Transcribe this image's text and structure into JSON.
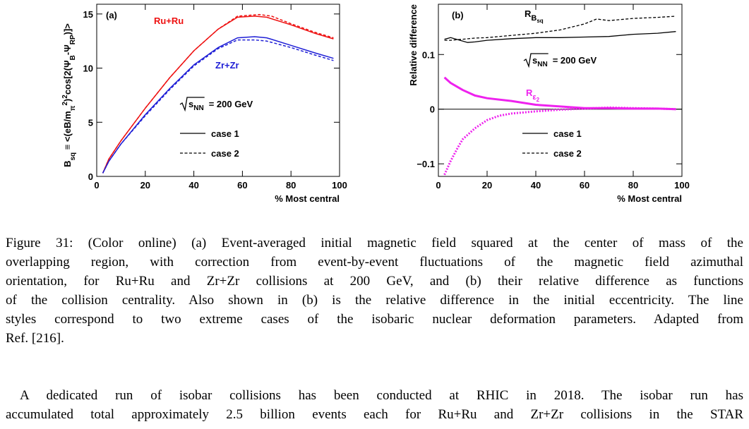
{
  "chart_data": [
    {
      "type": "line",
      "panel": "(a)",
      "xlabel": "% Most central",
      "ylabel": {
        "parts": [
          {
            "t": "B"
          },
          {
            "t": "sq",
            "s": "sub"
          },
          {
            "t": " ≡ <(eB/m"
          },
          {
            "t": "π",
            "s": "sub"
          },
          {
            "t": "2",
            "s": "super"
          },
          {
            "t": ")"
          },
          {
            "t": "2",
            "s": "super"
          },
          {
            "t": "cos[2(Ψ"
          },
          {
            "t": "B",
            "s": "sub"
          },
          {
            "t": "-Ψ"
          },
          {
            "t": "RP",
            "s": "sub"
          },
          {
            "t": ")]>"
          }
        ]
      },
      "xlim": [
        0,
        100
      ],
      "xticks": [
        0,
        20,
        40,
        60,
        80,
        100
      ],
      "ylim": [
        0,
        15.9
      ],
      "yticks": [
        0,
        5,
        10,
        15
      ],
      "energy": {
        "root": "s",
        "sub": "NN",
        "text": "= 200 GeV"
      },
      "legend": [
        {
          "name": "case 1",
          "dash": "solid"
        },
        {
          "name": "case 2",
          "dash": "dashed"
        }
      ],
      "series": [
        {
          "name": "Ru+Ru",
          "color": "#ee1111",
          "linewidth": 1.5,
          "lines": [
            {
              "dash": "solid",
              "x": [
                2.5,
                5,
                10,
                20,
                30,
                40,
                50,
                58,
                65,
                70,
                80,
                90,
                97.5
              ],
              "values": [
                0.3,
                1.6,
                3.3,
                6.3,
                9.1,
                11.6,
                13.6,
                14.7,
                14.8,
                14.7,
                14.0,
                13.2,
                12.7
              ]
            },
            {
              "dash": "dashed",
              "x": [
                2.5,
                5,
                10,
                20,
                30,
                40,
                50,
                58,
                67,
                72,
                80,
                90,
                97.5
              ],
              "values": [
                0.3,
                1.6,
                3.3,
                6.3,
                9.1,
                11.6,
                13.6,
                14.8,
                14.95,
                14.8,
                14.1,
                13.3,
                12.8
              ]
            }
          ]
        },
        {
          "name": "Zr+Zr",
          "color": "#1f1fd6",
          "linewidth": 1.5,
          "lines": [
            {
              "dash": "solid",
              "x": [
                2.5,
                5,
                10,
                20,
                30,
                40,
                50,
                58,
                65,
                70,
                80,
                90,
                97.5
              ],
              "values": [
                0.3,
                1.4,
                3.0,
                5.7,
                8.1,
                10.3,
                11.9,
                12.8,
                12.9,
                12.8,
                12.1,
                11.4,
                10.9
              ]
            },
            {
              "dash": "dashed",
              "x": [
                2.5,
                5,
                10,
                20,
                30,
                40,
                50,
                58,
                65,
                70,
                80,
                90,
                97.5
              ],
              "values": [
                0.3,
                1.4,
                3.0,
                5.6,
                8.0,
                10.2,
                11.8,
                12.6,
                12.6,
                12.5,
                11.9,
                11.2,
                10.7
              ]
            }
          ]
        }
      ]
    },
    {
      "type": "line",
      "panel": "(b)",
      "xlabel": "% Most central",
      "ylabel": {
        "parts": [
          {
            "t": "Relative difference"
          }
        ]
      },
      "xlim": [
        0,
        100
      ],
      "xticks": [
        0,
        20,
        40,
        60,
        80,
        100
      ],
      "ylim": [
        -0.123,
        0.192
      ],
      "yticks": [
        {
          "value": -0.1,
          "label": "−0.1"
        },
        0,
        0.1
      ],
      "hline": 0,
      "energy": {
        "root": "s",
        "sub": "NN",
        "text": "= 200 GeV"
      },
      "legend": [
        {
          "name": "case 1",
          "dash": "solid"
        },
        {
          "name": "case 2",
          "dash": "dashed"
        }
      ],
      "series": [
        {
          "name": "R",
          "sub": "B",
          "subsub": "sq",
          "color": "#000000",
          "linewidth": 1.3,
          "lines": [
            {
              "dash": "solid",
              "x": [
                2.5,
                5,
                8,
                12,
                15,
                20,
                30,
                40,
                50,
                60,
                70,
                80,
                90,
                97.5
              ],
              "values": [
                0.128,
                0.131,
                0.127,
                0.122,
                0.123,
                0.126,
                0.129,
                0.131,
                0.131,
                0.132,
                0.133,
                0.137,
                0.139,
                0.142
              ]
            },
            {
              "dash": "dashed",
              "x": [
                2.5,
                5,
                10,
                15,
                20,
                30,
                40,
                50,
                60,
                65,
                70,
                80,
                90,
                97.5
              ],
              "values": [
                0.126,
                0.126,
                0.128,
                0.13,
                0.131,
                0.135,
                0.139,
                0.145,
                0.156,
                0.165,
                0.162,
                0.166,
                0.168,
                0.17
              ]
            }
          ]
        },
        {
          "name": "R",
          "sub": "ε",
          "subsub": "2",
          "color": "#ee22ee",
          "linewidth": 3,
          "lines": [
            {
              "dash": "solid",
              "x": [
                2.5,
                5,
                10,
                15,
                20,
                30,
                40,
                50,
                60,
                70,
                80,
                90,
                97.5
              ],
              "values": [
                0.058,
                0.048,
                0.035,
                0.025,
                0.02,
                0.015,
                0.008,
                0.005,
                0.002,
                0.002,
                0.001,
                0.001,
                0
              ]
            },
            {
              "dash": "dotted",
              "x": [
                2.5,
                5,
                8,
                10,
                15,
                20,
                25,
                30,
                40,
                50,
                60,
                70,
                80,
                90,
                97.5
              ],
              "values": [
                -0.12,
                -0.095,
                -0.07,
                -0.055,
                -0.035,
                -0.02,
                -0.012,
                -0.008,
                -0.004,
                -0.001,
                0.001,
                0.003,
                0.002,
                0.001,
                0
              ]
            }
          ]
        }
      ]
    }
  ],
  "caption": {
    "lines": [
      "Figure 31: (Color online) (a) Event-averaged initial magnetic field squared at the center of mass of the",
      "overlapping region, with correction from event-by-event fluctuations of the magnetic field azimuthal",
      "orientation, for Ru+Ru and Zr+Zr collisions at 200 GeV, and (b) their relative difference as functions",
      "of the collision centrality. Also shown in (b) is the relative difference in the initial eccentricity. The line",
      "styles correspond to two extreme cases of the isobaric nuclear deformation parameters. Adapted from",
      "Ref. [216]."
    ]
  },
  "body": {
    "lines": [
      "A dedicated run of isobar collisions has been conducted at RHIC in 2018. The isobar run has",
      "accumulated total approximately 2.5 billion events each for Ru+Ru and Zr+Zr collisions in the STAR"
    ]
  }
}
